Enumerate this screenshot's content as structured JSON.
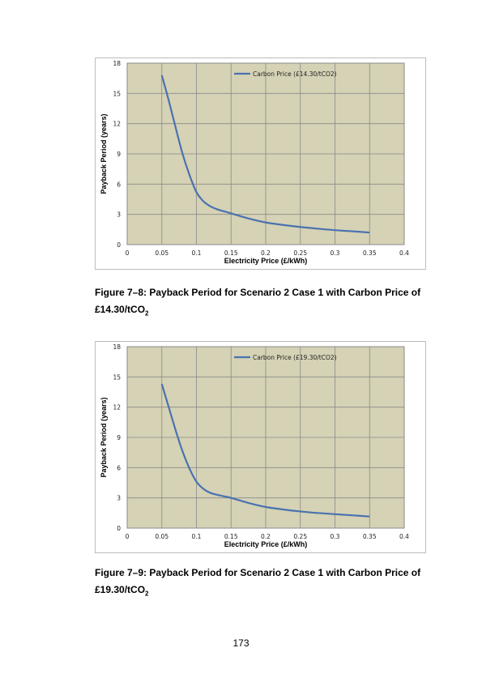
{
  "charts": [
    {
      "caption": "Figure 7–8: Payback Period for Scenario 2 Case 1 with Carbon Price of",
      "caption_line2_prefix": "£14.30/tCO",
      "caption_sub": "2",
      "chart_data": {
        "type": "line",
        "xlabel": "Electricity Price (£/kWh)",
        "ylabel": "Payback Period (years)",
        "xlim": [
          0,
          0.4
        ],
        "ylim": [
          0,
          18
        ],
        "xticks": [
          "0",
          "0.05",
          "0.1",
          "0.15",
          "0.2",
          "0.25",
          "0.3",
          "0.35",
          "0.4"
        ],
        "yticks": [
          "0",
          "3",
          "6",
          "9",
          "12",
          "15",
          "18"
        ],
        "grid": true,
        "legend": "top-center",
        "plot_bg": "#d5d2b5",
        "series": [
          {
            "name": "Carbon Price (£14.30/tCO2)",
            "color": "#4a72b0",
            "x": [
              0.05,
              0.06,
              0.07,
              0.08,
              0.09,
              0.1,
              0.11,
              0.12,
              0.13,
              0.14,
              0.15,
              0.175,
              0.2,
              0.225,
              0.25,
              0.275,
              0.3,
              0.325,
              0.35
            ],
            "y": [
              16.8,
              14.3,
              11.6,
              9.0,
              6.9,
              5.2,
              4.3,
              3.8,
              3.5,
              3.3,
              3.1,
              2.6,
              2.2,
              1.95,
              1.75,
              1.58,
              1.43,
              1.32,
              1.2
            ]
          }
        ]
      }
    },
    {
      "caption": "Figure 7–9: Payback Period for Scenario 2 Case 1 with Carbon Price of",
      "caption_line2_prefix": "£19.30/tCO",
      "caption_sub": "2",
      "chart_data": {
        "type": "line",
        "xlabel": "Electricity Price (£/kWh)",
        "ylabel": "Payback Period (years)",
        "xlim": [
          0,
          0.4
        ],
        "ylim": [
          0,
          18
        ],
        "xticks": [
          "0",
          "0.05",
          "0.1",
          "0.15",
          "0.2",
          "0.25",
          "0.3",
          "0.35",
          "0.4"
        ],
        "yticks": [
          "0",
          "3",
          "6",
          "9",
          "12",
          "15",
          "18"
        ],
        "grid": true,
        "legend": "top-center",
        "plot_bg": "#d5d2b5",
        "series": [
          {
            "name": "Carbon Price (£19.30/tCO2)",
            "color": "#4a72b0",
            "x": [
              0.05,
              0.06,
              0.07,
              0.08,
              0.09,
              0.1,
              0.11,
              0.12,
              0.13,
              0.14,
              0.15,
              0.175,
              0.2,
              0.225,
              0.25,
              0.275,
              0.3,
              0.325,
              0.35
            ],
            "y": [
              14.3,
              12.0,
              9.7,
              7.6,
              5.9,
              4.6,
              3.9,
              3.5,
              3.3,
              3.15,
              3.0,
              2.5,
              2.1,
              1.85,
              1.65,
              1.5,
              1.38,
              1.27,
              1.15
            ]
          }
        ]
      }
    }
  ],
  "page_number": "173"
}
